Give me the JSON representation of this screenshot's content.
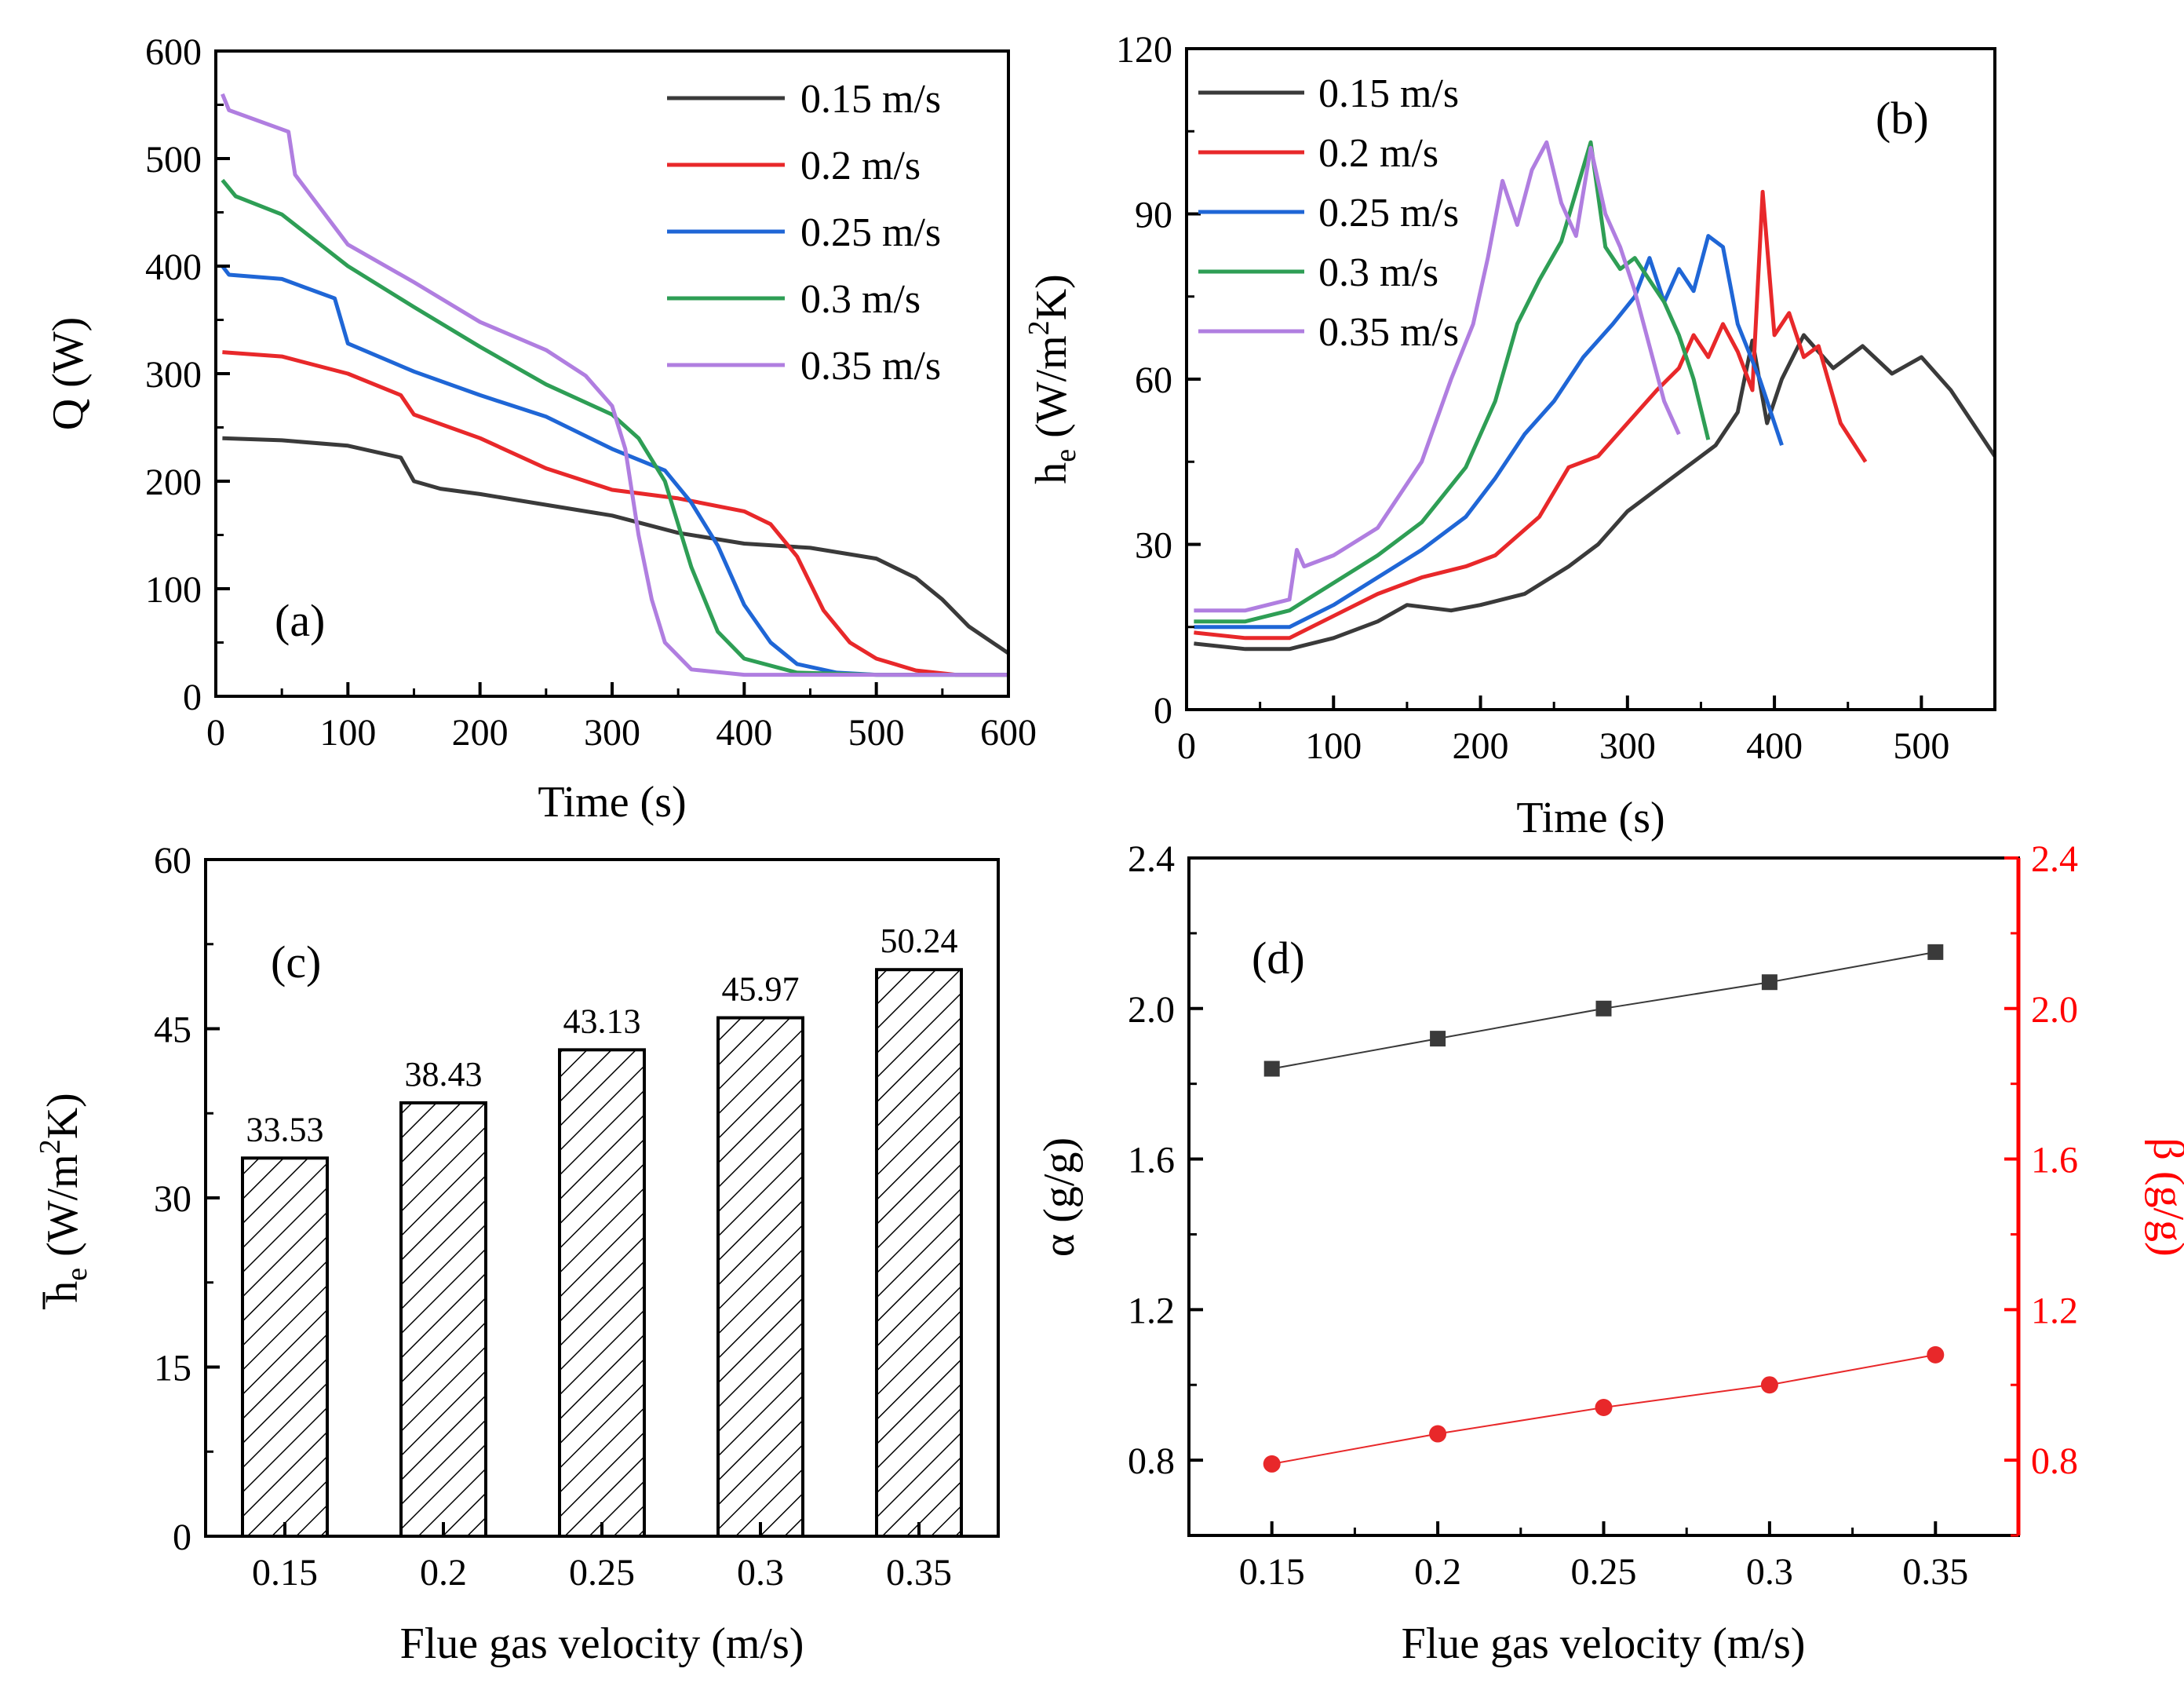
{
  "colors": {
    "black": "#3a3a3a",
    "red": "#e8282a",
    "blue": "#1f66d6",
    "green": "#2e9e55",
    "purple": "#b07ee0",
    "beta_red": "#ff0000"
  },
  "chart_data": [
    {
      "panel": "a",
      "type": "line",
      "panel_label": "(a)",
      "xlabel": "Time (s)",
      "ylabel": "Q (W)",
      "xlim": [
        0,
        600
      ],
      "ylim": [
        0,
        600
      ],
      "xticks": [
        "0",
        "100",
        "200",
        "300",
        "400",
        "500",
        "600"
      ],
      "yticks": [
        "0",
        "100",
        "200",
        "300",
        "400",
        "500",
        "600"
      ],
      "legend_position": "top-right",
      "series": [
        {
          "name": "0.15 m/s",
          "color": "#3a3a3a",
          "x": [
            5,
            50,
            100,
            140,
            150,
            170,
            200,
            250,
            300,
            350,
            400,
            450,
            500,
            530,
            550,
            570,
            600
          ],
          "y": [
            240,
            238,
            233,
            222,
            200,
            193,
            188,
            178,
            168,
            152,
            142,
            138,
            128,
            110,
            90,
            65,
            40
          ]
        },
        {
          "name": "0.2 m/s",
          "color": "#e8282a",
          "x": [
            5,
            50,
            100,
            140,
            150,
            200,
            250,
            300,
            350,
            400,
            420,
            440,
            460,
            480,
            500,
            530,
            560,
            600
          ],
          "y": [
            320,
            316,
            300,
            280,
            262,
            240,
            212,
            192,
            184,
            172,
            160,
            130,
            80,
            50,
            35,
            24,
            20,
            20
          ]
        },
        {
          "name": "0.25 m/s",
          "color": "#1f66d6",
          "x": [
            5,
            10,
            50,
            90,
            100,
            150,
            200,
            250,
            300,
            340,
            360,
            380,
            400,
            420,
            440,
            470,
            500,
            600
          ],
          "y": [
            400,
            392,
            388,
            370,
            328,
            302,
            280,
            260,
            230,
            210,
            180,
            140,
            85,
            50,
            30,
            22,
            20,
            20
          ]
        },
        {
          "name": "0.3 m/s",
          "color": "#2e9e55",
          "x": [
            5,
            15,
            50,
            100,
            150,
            200,
            250,
            300,
            320,
            340,
            360,
            380,
            400,
            440,
            500,
            600
          ],
          "y": [
            480,
            465,
            448,
            400,
            362,
            325,
            290,
            262,
            240,
            200,
            120,
            60,
            35,
            22,
            20,
            20
          ]
        },
        {
          "name": "0.35 m/s",
          "color": "#b07ee0",
          "x": [
            5,
            10,
            55,
            60,
            100,
            150,
            200,
            250,
            280,
            300,
            310,
            320,
            330,
            340,
            360,
            400,
            450,
            600
          ],
          "y": [
            560,
            545,
            525,
            485,
            420,
            385,
            348,
            322,
            298,
            270,
            230,
            150,
            90,
            50,
            25,
            20,
            20,
            20
          ]
        }
      ]
    },
    {
      "panel": "b",
      "type": "line",
      "panel_label": "(b)",
      "xlabel": "Time (s)",
      "ylabel_main": "h",
      "ylabel_sub": "e",
      "ylabel_units_pre": " (W/m",
      "ylabel_sup": "2",
      "ylabel_units_post": "K)",
      "xlim": [
        0,
        550
      ],
      "ylim": [
        0,
        120
      ],
      "xticks": [
        "0",
        "100",
        "200",
        "300",
        "400",
        "500"
      ],
      "yticks": [
        "0",
        "30",
        "60",
        "90",
        "120"
      ],
      "legend_position": "top-left",
      "series": [
        {
          "name": "0.15 m/s",
          "color": "#3a3a3a",
          "x": [
            5,
            40,
            70,
            100,
            130,
            150,
            180,
            200,
            230,
            260,
            280,
            300,
            320,
            340,
            360,
            375,
            385,
            395,
            405,
            420,
            440,
            460,
            480,
            500,
            520,
            535,
            550
          ],
          "y": [
            12,
            11,
            11,
            13,
            16,
            19,
            18,
            19,
            21,
            26,
            30,
            36,
            40,
            44,
            48,
            54,
            67,
            52,
            60,
            68,
            62,
            66,
            61,
            64,
            58,
            52,
            46
          ]
        },
        {
          "name": "0.2 m/s",
          "color": "#e8282a",
          "x": [
            5,
            40,
            70,
            100,
            130,
            160,
            190,
            210,
            240,
            260,
            280,
            300,
            320,
            335,
            345,
            355,
            365,
            375,
            385,
            392,
            400,
            410,
            420,
            430,
            445,
            462
          ],
          "y": [
            14,
            13,
            13,
            17,
            21,
            24,
            26,
            28,
            35,
            44,
            46,
            52,
            58,
            62,
            68,
            64,
            70,
            65,
            58,
            94,
            68,
            72,
            64,
            66,
            52,
            45
          ]
        },
        {
          "name": "0.25 m/s",
          "color": "#1f66d6",
          "x": [
            5,
            40,
            70,
            100,
            130,
            160,
            190,
            210,
            230,
            250,
            270,
            290,
            305,
            315,
            325,
            335,
            345,
            355,
            365,
            375,
            390,
            405
          ],
          "y": [
            15,
            15,
            15,
            19,
            24,
            29,
            35,
            42,
            50,
            56,
            64,
            70,
            75,
            82,
            74,
            80,
            76,
            86,
            84,
            70,
            60,
            48
          ]
        },
        {
          "name": "0.3 m/s",
          "color": "#2e9e55",
          "x": [
            5,
            40,
            70,
            100,
            130,
            160,
            190,
            210,
            225,
            240,
            255,
            265,
            275,
            285,
            295,
            305,
            315,
            325,
            335,
            345,
            355
          ],
          "y": [
            16,
            16,
            18,
            23,
            28,
            34,
            44,
            56,
            70,
            78,
            85,
            94,
            103,
            84,
            80,
            82,
            78,
            74,
            68,
            60,
            49
          ]
        },
        {
          "name": "0.35 m/s",
          "color": "#b07ee0",
          "x": [
            5,
            40,
            70,
            75,
            80,
            100,
            130,
            160,
            180,
            195,
            205,
            215,
            225,
            235,
            245,
            255,
            265,
            275,
            285,
            295,
            305,
            315,
            325,
            335
          ],
          "y": [
            18,
            18,
            20,
            29,
            26,
            28,
            33,
            45,
            60,
            70,
            82,
            96,
            88,
            98,
            103,
            92,
            86,
            102,
            90,
            84,
            76,
            66,
            56,
            50
          ]
        }
      ]
    },
    {
      "panel": "c",
      "type": "bar",
      "panel_label": "(c)",
      "xlabel": "Flue gas velocity (m/s)",
      "ylabel_main": "h",
      "ylabel_sub": "e",
      "ylabel_units_pre": " (W/m",
      "ylabel_sup": "2",
      "ylabel_units_post": "K)",
      "categories": [
        "0.15",
        "0.2",
        "0.25",
        "0.3",
        "0.35"
      ],
      "values": [
        33.53,
        38.43,
        43.13,
        45.97,
        50.24
      ],
      "value_labels": [
        "33.53",
        "38.43",
        "43.13",
        "45.97",
        "50.24"
      ],
      "ylim": [
        0,
        60
      ],
      "yticks": [
        "0",
        "15",
        "30",
        "45",
        "60"
      ]
    },
    {
      "panel": "d",
      "type": "scatter",
      "panel_label": "(d)",
      "xlabel": "Flue gas velocity (m/s)",
      "ylabel_left": "α (g/g)",
      "ylabel_right": "β (g/g)",
      "categories": [
        "0.15",
        "0.2",
        "0.25",
        "0.3",
        "0.35"
      ],
      "x": [
        0.15,
        0.2,
        0.25,
        0.3,
        0.35
      ],
      "xlim": [
        0.125,
        0.375
      ],
      "ylim": [
        0.6,
        2.4
      ],
      "yticks": [
        "0.8",
        "1.2",
        "1.6",
        "2.0",
        "2.4"
      ],
      "series": [
        {
          "name": "α",
          "axis": "left",
          "marker": "square",
          "color": "#3a3a3a",
          "values": [
            1.84,
            1.92,
            2.0,
            2.07,
            2.15
          ]
        },
        {
          "name": "β",
          "axis": "right",
          "marker": "circle",
          "color": "#e8282a",
          "values": [
            0.79,
            0.87,
            0.94,
            1.0,
            1.08
          ]
        }
      ]
    }
  ]
}
